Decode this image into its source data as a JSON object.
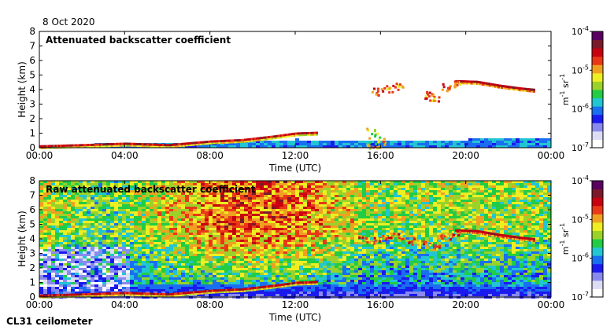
{
  "header": {
    "date": "8 Oct 2020"
  },
  "footer": {
    "instrument": "CL31 ceilometer"
  },
  "colors": {
    "colormap": [
      "#ffffff",
      "#dcdcf4",
      "#8a8aee",
      "#1a1aee",
      "#1a6ef0",
      "#22c6d2",
      "#22cc44",
      "#9ad22a",
      "#eeee22",
      "#f0a020",
      "#e83818",
      "#c80010",
      "#7a1a2a",
      "#5a0060"
    ]
  },
  "chart_data": [
    {
      "type": "heatmap",
      "title": "Attenuated backscatter coefficient",
      "xlabel": "Time (UTC)",
      "ylabel": "Height (km)",
      "x_ticks": [
        "00:00",
        "04:00",
        "08:00",
        "12:00",
        "16:00",
        "20:00",
        "00:00"
      ],
      "y_ticks": [
        "0",
        "1",
        "2",
        "3",
        "4",
        "5",
        "6",
        "7",
        "8"
      ],
      "xlim_hours": [
        0,
        24
      ],
      "ylim_km": [
        0,
        8
      ],
      "colorbar": {
        "unit_base": "m",
        "unit_exp1": "-1",
        "unit_mid": " sr",
        "unit_exp2": "-1",
        "log_scale": true,
        "ticks": [
          {
            "base": "10",
            "exp": "-4"
          },
          {
            "base": "10",
            "exp": "-5"
          },
          {
            "base": "10",
            "exp": "-6"
          },
          {
            "base": "10",
            "exp": "-7"
          }
        ]
      },
      "features": {
        "boundary_layer": [
          [
            0,
            0.15
          ],
          [
            2,
            0.3
          ],
          [
            4,
            0.42
          ],
          [
            6,
            0.35
          ],
          [
            8,
            0.45
          ],
          [
            10,
            0.55
          ],
          [
            12,
            0.65
          ],
          [
            14,
            0.6
          ],
          [
            16,
            0.65
          ],
          [
            18,
            0.6
          ],
          [
            20,
            0.65
          ],
          [
            22,
            0.7
          ],
          [
            24,
            0.75
          ]
        ],
        "cloud_layer_low": [
          [
            0,
            0.12
          ],
          [
            2,
            0.2
          ],
          [
            4,
            0.3
          ],
          [
            5,
            0.25
          ],
          [
            6,
            0.2
          ],
          [
            8,
            0.45
          ],
          [
            9.5,
            0.55
          ],
          [
            11,
            0.8
          ],
          [
            12,
            1.0
          ],
          [
            13,
            1.05
          ]
        ],
        "cloud_layer_high": [
          [
            19.5,
            4.6
          ],
          [
            20.5,
            4.55
          ],
          [
            21.5,
            4.3
          ],
          [
            22.5,
            4.1
          ],
          [
            23.2,
            4.0
          ]
        ],
        "cloud_patches": [
          [
            15.8,
            3.9
          ],
          [
            16.3,
            4.1
          ],
          [
            16.8,
            4.3
          ],
          [
            18.2,
            3.7
          ],
          [
            18.5,
            3.5
          ],
          [
            19.0,
            4.2
          ],
          [
            19.5,
            4.4
          ]
        ],
        "convective_plumes": [
          [
            15.6,
            1.5
          ],
          [
            15.9,
            1.2
          ]
        ]
      }
    },
    {
      "type": "heatmap",
      "title": "Raw attenuated backscatter coefficient",
      "xlabel": "Time (UTC)",
      "ylabel": "Height (km)",
      "x_ticks": [
        "00:00",
        "04:00",
        "08:00",
        "12:00",
        "16:00",
        "20:00",
        "00:00"
      ],
      "y_ticks": [
        "0",
        "1",
        "2",
        "3",
        "4",
        "5",
        "6",
        "7",
        "8"
      ],
      "xlim_hours": [
        0,
        24
      ],
      "ylim_km": [
        0,
        8
      ],
      "colorbar": {
        "unit_base": "m",
        "unit_exp1": "-1",
        "unit_mid": " sr",
        "unit_exp2": "-1",
        "log_scale": true,
        "ticks": [
          {
            "base": "10",
            "exp": "-4"
          },
          {
            "base": "10",
            "exp": "-5"
          },
          {
            "base": "10",
            "exp": "-6"
          },
          {
            "base": "10",
            "exp": "-7"
          }
        ]
      },
      "features": {
        "noise_level_by_hour": [
          [
            0,
            0.55
          ],
          [
            3,
            0.35
          ],
          [
            6,
            0.6
          ],
          [
            9,
            0.85
          ],
          [
            12,
            0.8
          ],
          [
            14,
            0.6
          ],
          [
            16,
            0.45
          ],
          [
            20,
            0.5
          ],
          [
            24,
            0.45
          ]
        ],
        "boundary_layer": [
          [
            0,
            0.15
          ],
          [
            2,
            0.3
          ],
          [
            4,
            0.42
          ],
          [
            6,
            0.35
          ],
          [
            8,
            0.45
          ],
          [
            10,
            0.55
          ],
          [
            12,
            0.65
          ],
          [
            14,
            0.6
          ],
          [
            16,
            0.65
          ],
          [
            18,
            0.6
          ],
          [
            20,
            0.65
          ],
          [
            22,
            0.7
          ],
          [
            24,
            0.75
          ]
        ],
        "cloud_layer_low": [
          [
            0,
            0.12
          ],
          [
            2,
            0.2
          ],
          [
            4,
            0.3
          ],
          [
            5,
            0.25
          ],
          [
            6,
            0.2
          ],
          [
            8,
            0.45
          ],
          [
            9.5,
            0.55
          ],
          [
            11,
            0.8
          ],
          [
            12,
            1.0
          ],
          [
            13,
            1.05
          ]
        ],
        "cloud_layer_high": [
          [
            19.5,
            4.6
          ],
          [
            20.5,
            4.55
          ],
          [
            21.5,
            4.3
          ],
          [
            22.5,
            4.1
          ],
          [
            23.2,
            4.0
          ]
        ],
        "cloud_patches": [
          [
            15.2,
            4.0
          ],
          [
            15.8,
            3.9
          ],
          [
            16.3,
            4.1
          ],
          [
            16.8,
            4.3
          ],
          [
            17.5,
            3.9
          ],
          [
            18.2,
            3.7
          ],
          [
            18.5,
            3.5
          ],
          [
            19.0,
            4.2
          ],
          [
            19.5,
            4.4
          ]
        ]
      }
    }
  ]
}
